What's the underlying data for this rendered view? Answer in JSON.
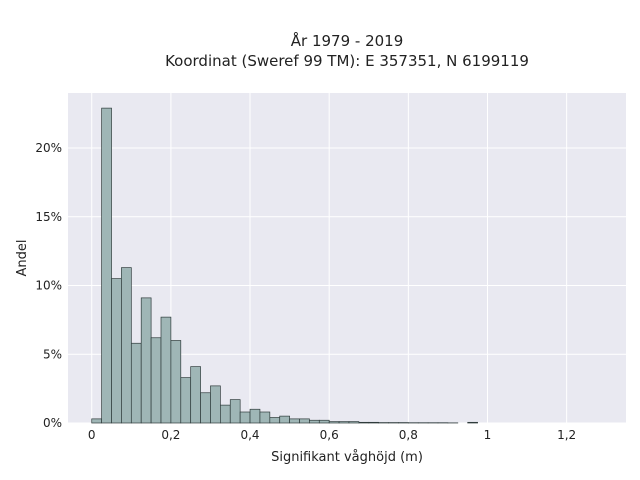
{
  "chart_data": {
    "type": "bar",
    "title_line1": "År 1979 - 2019",
    "title_line2": "Koordinat (Sweref 99 TM): E 357351, N 6199119",
    "xlabel": "Signifikant våghöjd (m)",
    "ylabel": "Andel",
    "xlim": [
      -0.06,
      1.35
    ],
    "ylim": [
      0,
      0.24
    ],
    "grid": true,
    "bin_width": 0.025,
    "bins_start": [
      0.0,
      0.025,
      0.05,
      0.075,
      0.1,
      0.125,
      0.15,
      0.175,
      0.2,
      0.225,
      0.25,
      0.275,
      0.3,
      0.325,
      0.35,
      0.375,
      0.4,
      0.425,
      0.45,
      0.475,
      0.5,
      0.525,
      0.55,
      0.575,
      0.6,
      0.625,
      0.65,
      0.675,
      0.7,
      0.725,
      0.75,
      0.775,
      0.8,
      0.825,
      0.85,
      0.875,
      0.9,
      0.925,
      0.95
    ],
    "values": [
      0.003,
      0.229,
      0.105,
      0.113,
      0.058,
      0.091,
      0.062,
      0.077,
      0.06,
      0.033,
      0.041,
      0.022,
      0.027,
      0.013,
      0.017,
      0.008,
      0.01,
      0.008,
      0.004,
      0.005,
      0.003,
      0.003,
      0.002,
      0.002,
      0.001,
      0.001,
      0.001,
      0.0005,
      0.0005,
      0.0003,
      0.0003,
      0.0003,
      0.0002,
      0.0002,
      0.0002,
      0.0002,
      0.0001,
      0.0,
      0.0005
    ],
    "x_ticks": [
      {
        "value": 0,
        "label": "0"
      },
      {
        "value": 0.2,
        "label": "0,2"
      },
      {
        "value": 0.4,
        "label": "0,4"
      },
      {
        "value": 0.6,
        "label": "0,6"
      },
      {
        "value": 0.8,
        "label": "0,8"
      },
      {
        "value": 1.0,
        "label": "1"
      },
      {
        "value": 1.2,
        "label": "1,2"
      }
    ],
    "y_ticks": [
      {
        "value": 0,
        "label": "0%"
      },
      {
        "value": 0.05,
        "label": "5%"
      },
      {
        "value": 0.1,
        "label": "10%"
      },
      {
        "value": 0.15,
        "label": "15%"
      },
      {
        "value": 0.2,
        "label": "20%"
      }
    ],
    "colors": {
      "plot_bg": "#e9e9f1",
      "grid": "#ffffff",
      "bar_fill": "#9fb6b6",
      "bar_stroke": "#2f3c3c"
    }
  }
}
